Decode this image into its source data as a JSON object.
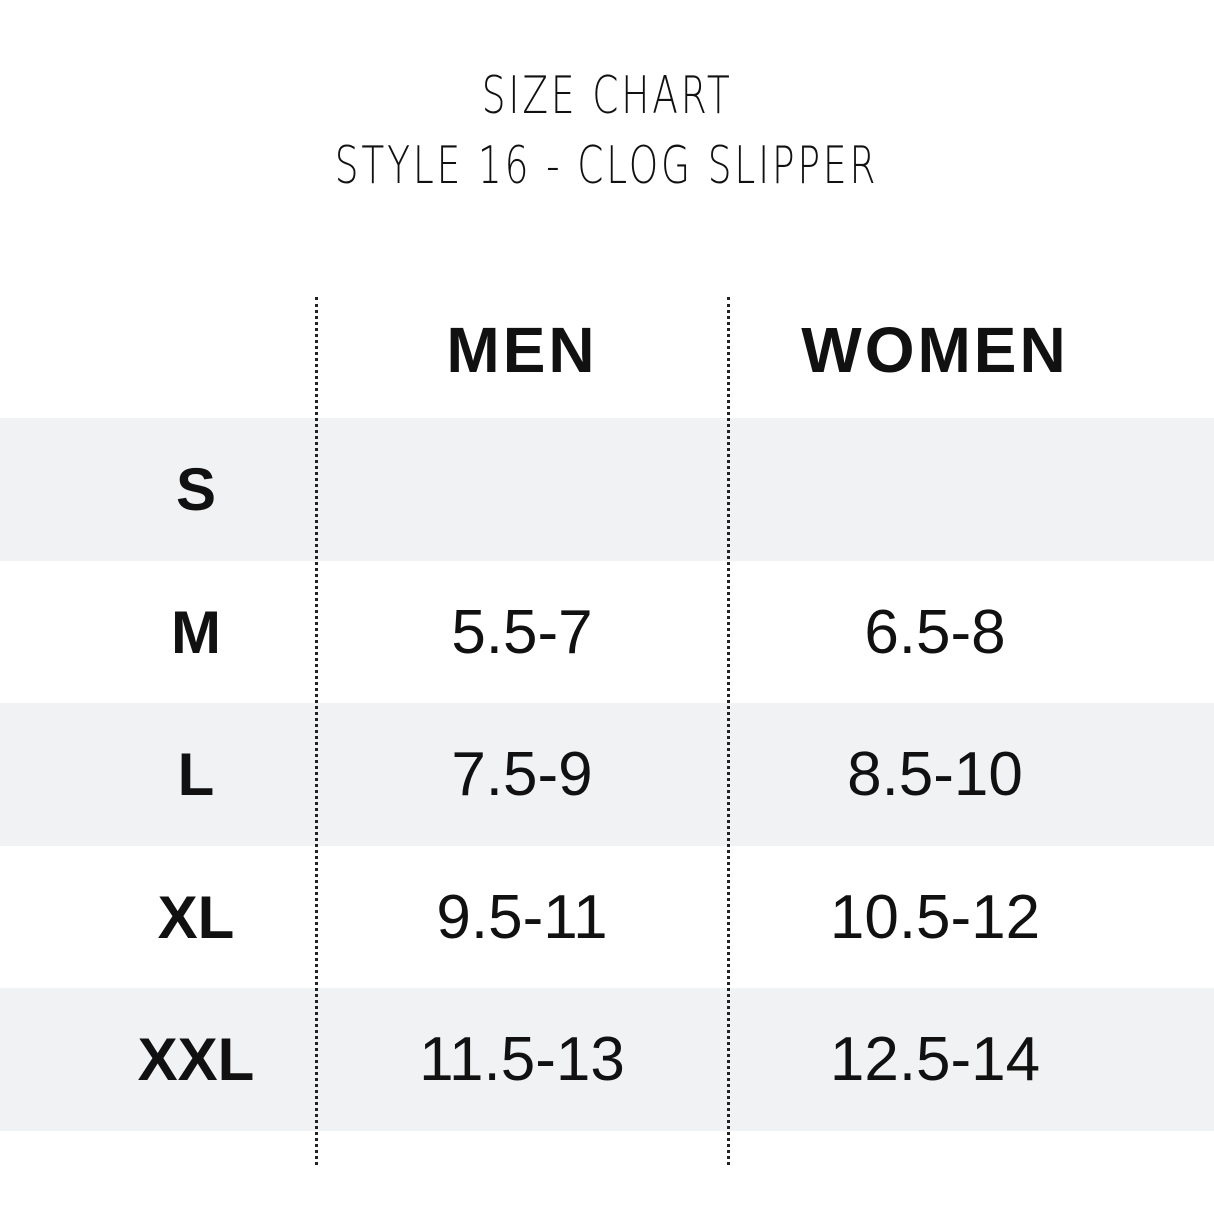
{
  "title": {
    "line1": "SIZE CHART",
    "line2": "STYLE 16 - CLOG SLIPPER"
  },
  "colors": {
    "row_shade": "#f1f2f4",
    "text": "#111111"
  },
  "chart_data": {
    "type": "table",
    "columns": [
      "",
      "MEN",
      "WOMEN"
    ],
    "rows": [
      {
        "size": "S",
        "men": "",
        "women": ""
      },
      {
        "size": "M",
        "men": "5.5-7",
        "women": "6.5-8"
      },
      {
        "size": "L",
        "men": "7.5-9",
        "women": "8.5-10"
      },
      {
        "size": "XL",
        "men": "9.5-11",
        "women": "10.5-12"
      },
      {
        "size": "XXL",
        "men": "11.5-13",
        "women": "12.5-14"
      }
    ]
  }
}
